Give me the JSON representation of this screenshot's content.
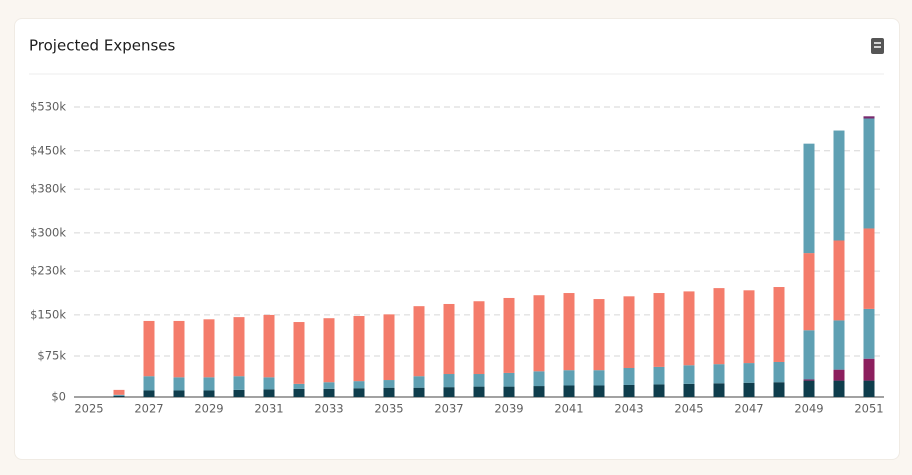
{
  "chart_data": {
    "type": "stacked-bar",
    "title": "Projected Expenses",
    "categories": [
      "2025",
      null,
      "2027",
      null,
      "2029",
      null,
      "2031",
      null,
      "2033",
      null,
      "2035",
      null,
      "2037",
      null,
      "2039",
      null,
      "2041",
      null,
      "2043",
      null,
      "2045",
      null,
      "2047",
      null,
      "2049",
      null,
      "2051"
    ],
    "series": [
      {
        "color": "#0f3d4c",
        "values": [
          null,
          2000,
          12000,
          12000,
          12000,
          13000,
          14000,
          15000,
          15000,
          16000,
          17000,
          17000,
          18000,
          19000,
          19000,
          20000,
          21000,
          21000,
          22000,
          23000,
          24000,
          25000,
          26000,
          27000,
          30000,
          30000,
          30000
        ]
      },
      {
        "color": "#8c1f5e",
        "values": [
          null,
          0,
          0,
          0,
          0,
          0,
          0,
          0,
          0,
          0,
          0,
          0,
          0,
          0,
          0,
          0,
          0,
          0,
          0,
          0,
          0,
          0,
          0,
          0,
          2000,
          20000,
          40000
        ]
      },
      {
        "color": "#5fa0b3",
        "values": [
          null,
          2000,
          26000,
          24000,
          24000,
          25000,
          22000,
          9000,
          12000,
          13000,
          14000,
          21000,
          24000,
          23000,
          25000,
          27000,
          28000,
          28000,
          31000,
          32000,
          34000,
          35000,
          36000,
          37000,
          90000,
          90000,
          91000
        ]
      },
      {
        "color": "#f47c6b",
        "values": [
          null,
          9000,
          101000,
          103000,
          106000,
          108000,
          114000,
          113000,
          117000,
          119000,
          120000,
          128000,
          128000,
          133000,
          137000,
          139000,
          141000,
          130000,
          131000,
          135000,
          135000,
          139000,
          133000,
          137000,
          141000,
          146000,
          147000
        ]
      },
      {
        "color": "#5fa0b3",
        "values": [
          null,
          0,
          0,
          0,
          0,
          0,
          0,
          0,
          0,
          0,
          0,
          0,
          0,
          0,
          0,
          0,
          0,
          0,
          0,
          0,
          0,
          0,
          0,
          0,
          200000,
          201000,
          201000
        ]
      },
      {
        "color": "#7a2a6e",
        "values": [
          null,
          0,
          0,
          0,
          0,
          0,
          0,
          0,
          0,
          0,
          0,
          0,
          0,
          0,
          0,
          0,
          0,
          0,
          0,
          0,
          0,
          0,
          0,
          0,
          0,
          0,
          4000
        ]
      }
    ],
    "ylim": [
      0,
      530000
    ],
    "yticks": [
      {
        "value": 0,
        "label": "$0"
      },
      {
        "value": 75000,
        "label": "$75k"
      },
      {
        "value": 150000,
        "label": "$150k"
      },
      {
        "value": 230000,
        "label": "$230k"
      },
      {
        "value": 300000,
        "label": "$300k"
      },
      {
        "value": 380000,
        "label": "$380k"
      },
      {
        "value": 450000,
        "label": "$450k"
      },
      {
        "value": 530000,
        "label": "$530k"
      }
    ],
    "grid": true
  }
}
